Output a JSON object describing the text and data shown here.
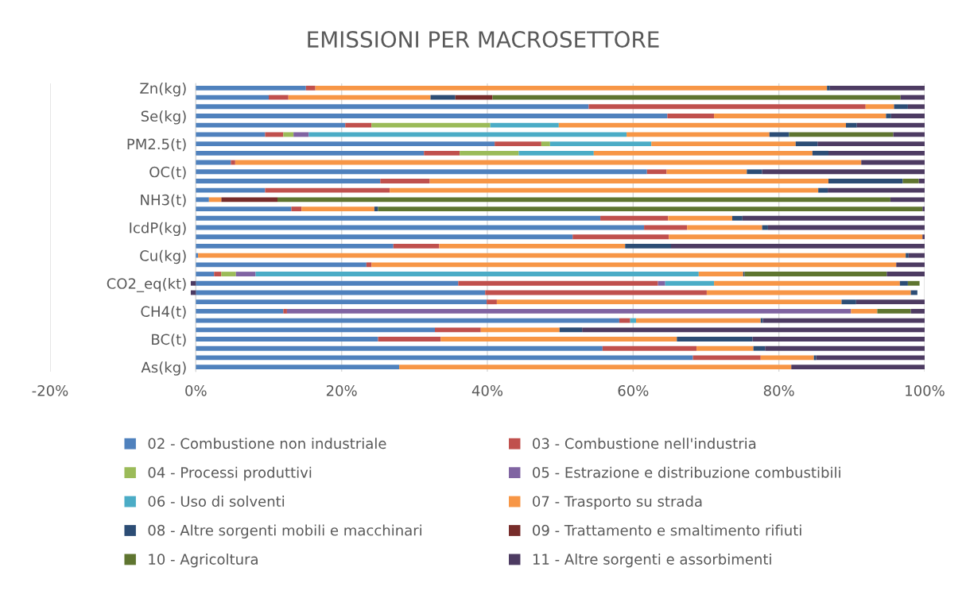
{
  "chart_data": {
    "type": "bar",
    "orientation": "horizontal",
    "stacked": true,
    "title": "EMISSIONI PER MACROSETTORE",
    "categories": [
      "Zn(kg)",
      null,
      null,
      "Se(kg)",
      null,
      null,
      "PM2.5(t)",
      null,
      null,
      "OC(t)",
      null,
      null,
      "NH3(t)",
      null,
      null,
      "IcdP(kg)",
      null,
      null,
      "Cu(kg)",
      null,
      null,
      "CO2_eq(kt)",
      null,
      null,
      "CH4(t)",
      null,
      null,
      "BC(t)",
      null,
      null,
      "As(kg)"
    ],
    "series": [
      {
        "name": "02 - Combustione non industriale",
        "color": "#4f81bd",
        "values": [
          15.1,
          10.0,
          53.9,
          64.7,
          20.5,
          9.5,
          41.0,
          31.3,
          4.8,
          61.9,
          25.3,
          9.5,
          1.8,
          13.1,
          55.5,
          61.5,
          51.7,
          27.1,
          0.3,
          23.4,
          2.5,
          36.0,
          39.7,
          39.9,
          12.0,
          58.1,
          32.8,
          25.0,
          55.8,
          68.2,
          27.9
        ]
      },
      {
        "name": "03 - Combustione nell'industria",
        "color": "#c0504d",
        "values": [
          1.3,
          2.7,
          38.0,
          6.4,
          3.6,
          2.5,
          6.4,
          4.9,
          0.6,
          2.7,
          6.8,
          17.1,
          null,
          1.4,
          9.3,
          5.9,
          13.2,
          6.3,
          null,
          0.7,
          1.0,
          27.4,
          30.4,
          1.4,
          0.5,
          1.5,
          6.3,
          8.6,
          12.9,
          9.3,
          null
        ]
      },
      {
        "name": "04 - Processi produttivi",
        "color": "#9bbb59",
        "values": [
          null,
          null,
          null,
          null,
          16.3,
          1.4,
          1.2,
          8.1,
          null,
          null,
          null,
          null,
          null,
          null,
          null,
          null,
          null,
          null,
          null,
          null,
          2.0,
          null,
          null,
          null,
          null,
          null,
          null,
          null,
          null,
          null,
          null
        ]
      },
      {
        "name": "05 - Estrazione e distribuzione combustibili",
        "color": "#8064a2",
        "values": [
          null,
          null,
          null,
          null,
          null,
          2.1,
          null,
          null,
          null,
          null,
          null,
          null,
          null,
          null,
          null,
          null,
          null,
          null,
          null,
          null,
          2.7,
          1.0,
          null,
          null,
          77.4,
          null,
          null,
          null,
          null,
          null,
          null
        ]
      },
      {
        "name": "06 - Uso di solventi",
        "color": "#4bacc6",
        "values": [
          null,
          null,
          null,
          null,
          9.4,
          43.6,
          13.9,
          10.3,
          null,
          null,
          null,
          null,
          null,
          null,
          null,
          null,
          null,
          null,
          null,
          null,
          60.8,
          6.7,
          null,
          null,
          null,
          0.8,
          null,
          null,
          null,
          null,
          null
        ]
      },
      {
        "name": "07 - Trasporto su strada",
        "color": "#f79646",
        "values": [
          70.2,
          19.5,
          3.9,
          23.6,
          39.4,
          19.6,
          19.8,
          30.0,
          85.9,
          11.0,
          54.7,
          58.8,
          1.7,
          10.0,
          8.8,
          10.3,
          34.8,
          25.5,
          97.1,
          72.0,
          6.1,
          25.5,
          28.0,
          47.3,
          3.6,
          17.1,
          10.8,
          32.4,
          7.8,
          7.3,
          53.8
        ]
      },
      {
        "name": "08 - Altre sorgenti mobili e macchinari",
        "color": "#2c4d75",
        "values": [
          0.4,
          3.4,
          1.9,
          0.7,
          1.5,
          2.7,
          3.0,
          2.2,
          null,
          2.1,
          10.2,
          1.3,
          null,
          0.5,
          1.4,
          0.8,
          null,
          6.3,
          0.4,
          null,
          0.2,
          1.1,
          0.9,
          2.0,
          null,
          0.3,
          3.1,
          10.4,
          1.6,
          0.3,
          null
        ]
      },
      {
        "name": "09 - Trattamento e smaltimento rifiuti",
        "color": "#772c2a",
        "values": [
          null,
          5.1,
          null,
          null,
          null,
          null,
          null,
          null,
          null,
          null,
          null,
          null,
          7.7,
          null,
          null,
          null,
          null,
          null,
          null,
          null,
          null,
          null,
          null,
          null,
          null,
          null,
          null,
          null,
          null,
          null,
          null
        ]
      },
      {
        "name": "10 - Agricoltura",
        "color": "#5f7530",
        "values": [
          null,
          56.0,
          null,
          null,
          null,
          14.3,
          null,
          null,
          null,
          null,
          2.2,
          null,
          84.1,
          74.7,
          null,
          null,
          null,
          null,
          null,
          null,
          19.5,
          1.6,
          null,
          null,
          4.6,
          null,
          null,
          null,
          null,
          null,
          null
        ]
      },
      {
        "name": "11 - Altre sorgenti e assorbimenti",
        "color": "#4d3b62",
        "values": [
          13.0,
          3.3,
          2.3,
          4.6,
          9.3,
          4.3,
          14.7,
          13.2,
          8.7,
          22.3,
          0.8,
          13.3,
          4.7,
          0.3,
          25.0,
          21.5,
          0.3,
          34.8,
          2.2,
          3.9,
          5.2,
          -0.7,
          -0.7,
          9.4,
          1.9,
          22.2,
          47.0,
          23.6,
          21.9,
          14.9,
          18.3
        ]
      }
    ],
    "xlim": [
      -20,
      100
    ],
    "xticks": [
      {
        "value": -20,
        "label": "-20%"
      },
      {
        "value": 0,
        "label": "0%"
      },
      {
        "value": 20,
        "label": "20%"
      },
      {
        "value": 40,
        "label": "40%"
      },
      {
        "value": 60,
        "label": "60%"
      },
      {
        "value": 80,
        "label": "80%"
      },
      {
        "value": 100,
        "label": "100%"
      }
    ],
    "grid": "x",
    "legend": "bottom"
  }
}
